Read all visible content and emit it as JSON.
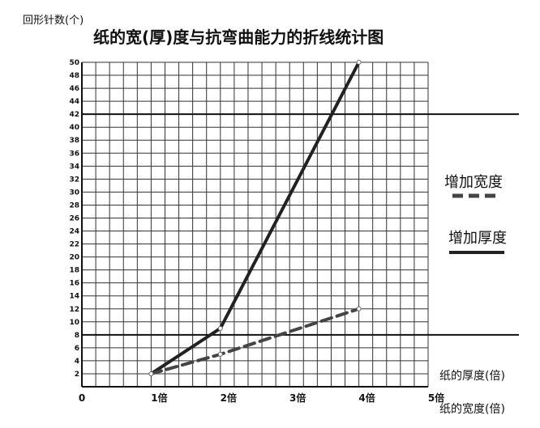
{
  "chart_data": {
    "type": "line",
    "title": "纸的宽(厚)度与抗弯曲能力的折线统计图",
    "ylabel": "回形针数(个)",
    "xlabel_top": "纸的厚度(倍)",
    "xlabel_bottom": "纸的宽度(倍)",
    "x_ticks": [
      "0",
      "1倍",
      "2倍",
      "3倍",
      "4倍",
      "5倍"
    ],
    "x_range": [
      0,
      5
    ],
    "y_range": [
      0,
      50
    ],
    "y_ticks": [
      2,
      4,
      6,
      8,
      10,
      12,
      14,
      16,
      18,
      20,
      22,
      24,
      26,
      28,
      30,
      32,
      34,
      36,
      38,
      40,
      42,
      44,
      46,
      48,
      50
    ],
    "grid": true,
    "highlight_lines_y": [
      8,
      42
    ],
    "legend_position": "right",
    "series": [
      {
        "name": "增加厚度",
        "style": "solid",
        "color": "#222222",
        "x": [
          1,
          2,
          4
        ],
        "y": [
          2,
          9,
          50
        ]
      },
      {
        "name": "增加宽度",
        "style": "dashed",
        "color": "#444444",
        "x": [
          1,
          2,
          4
        ],
        "y": [
          2,
          5,
          12
        ]
      }
    ]
  }
}
